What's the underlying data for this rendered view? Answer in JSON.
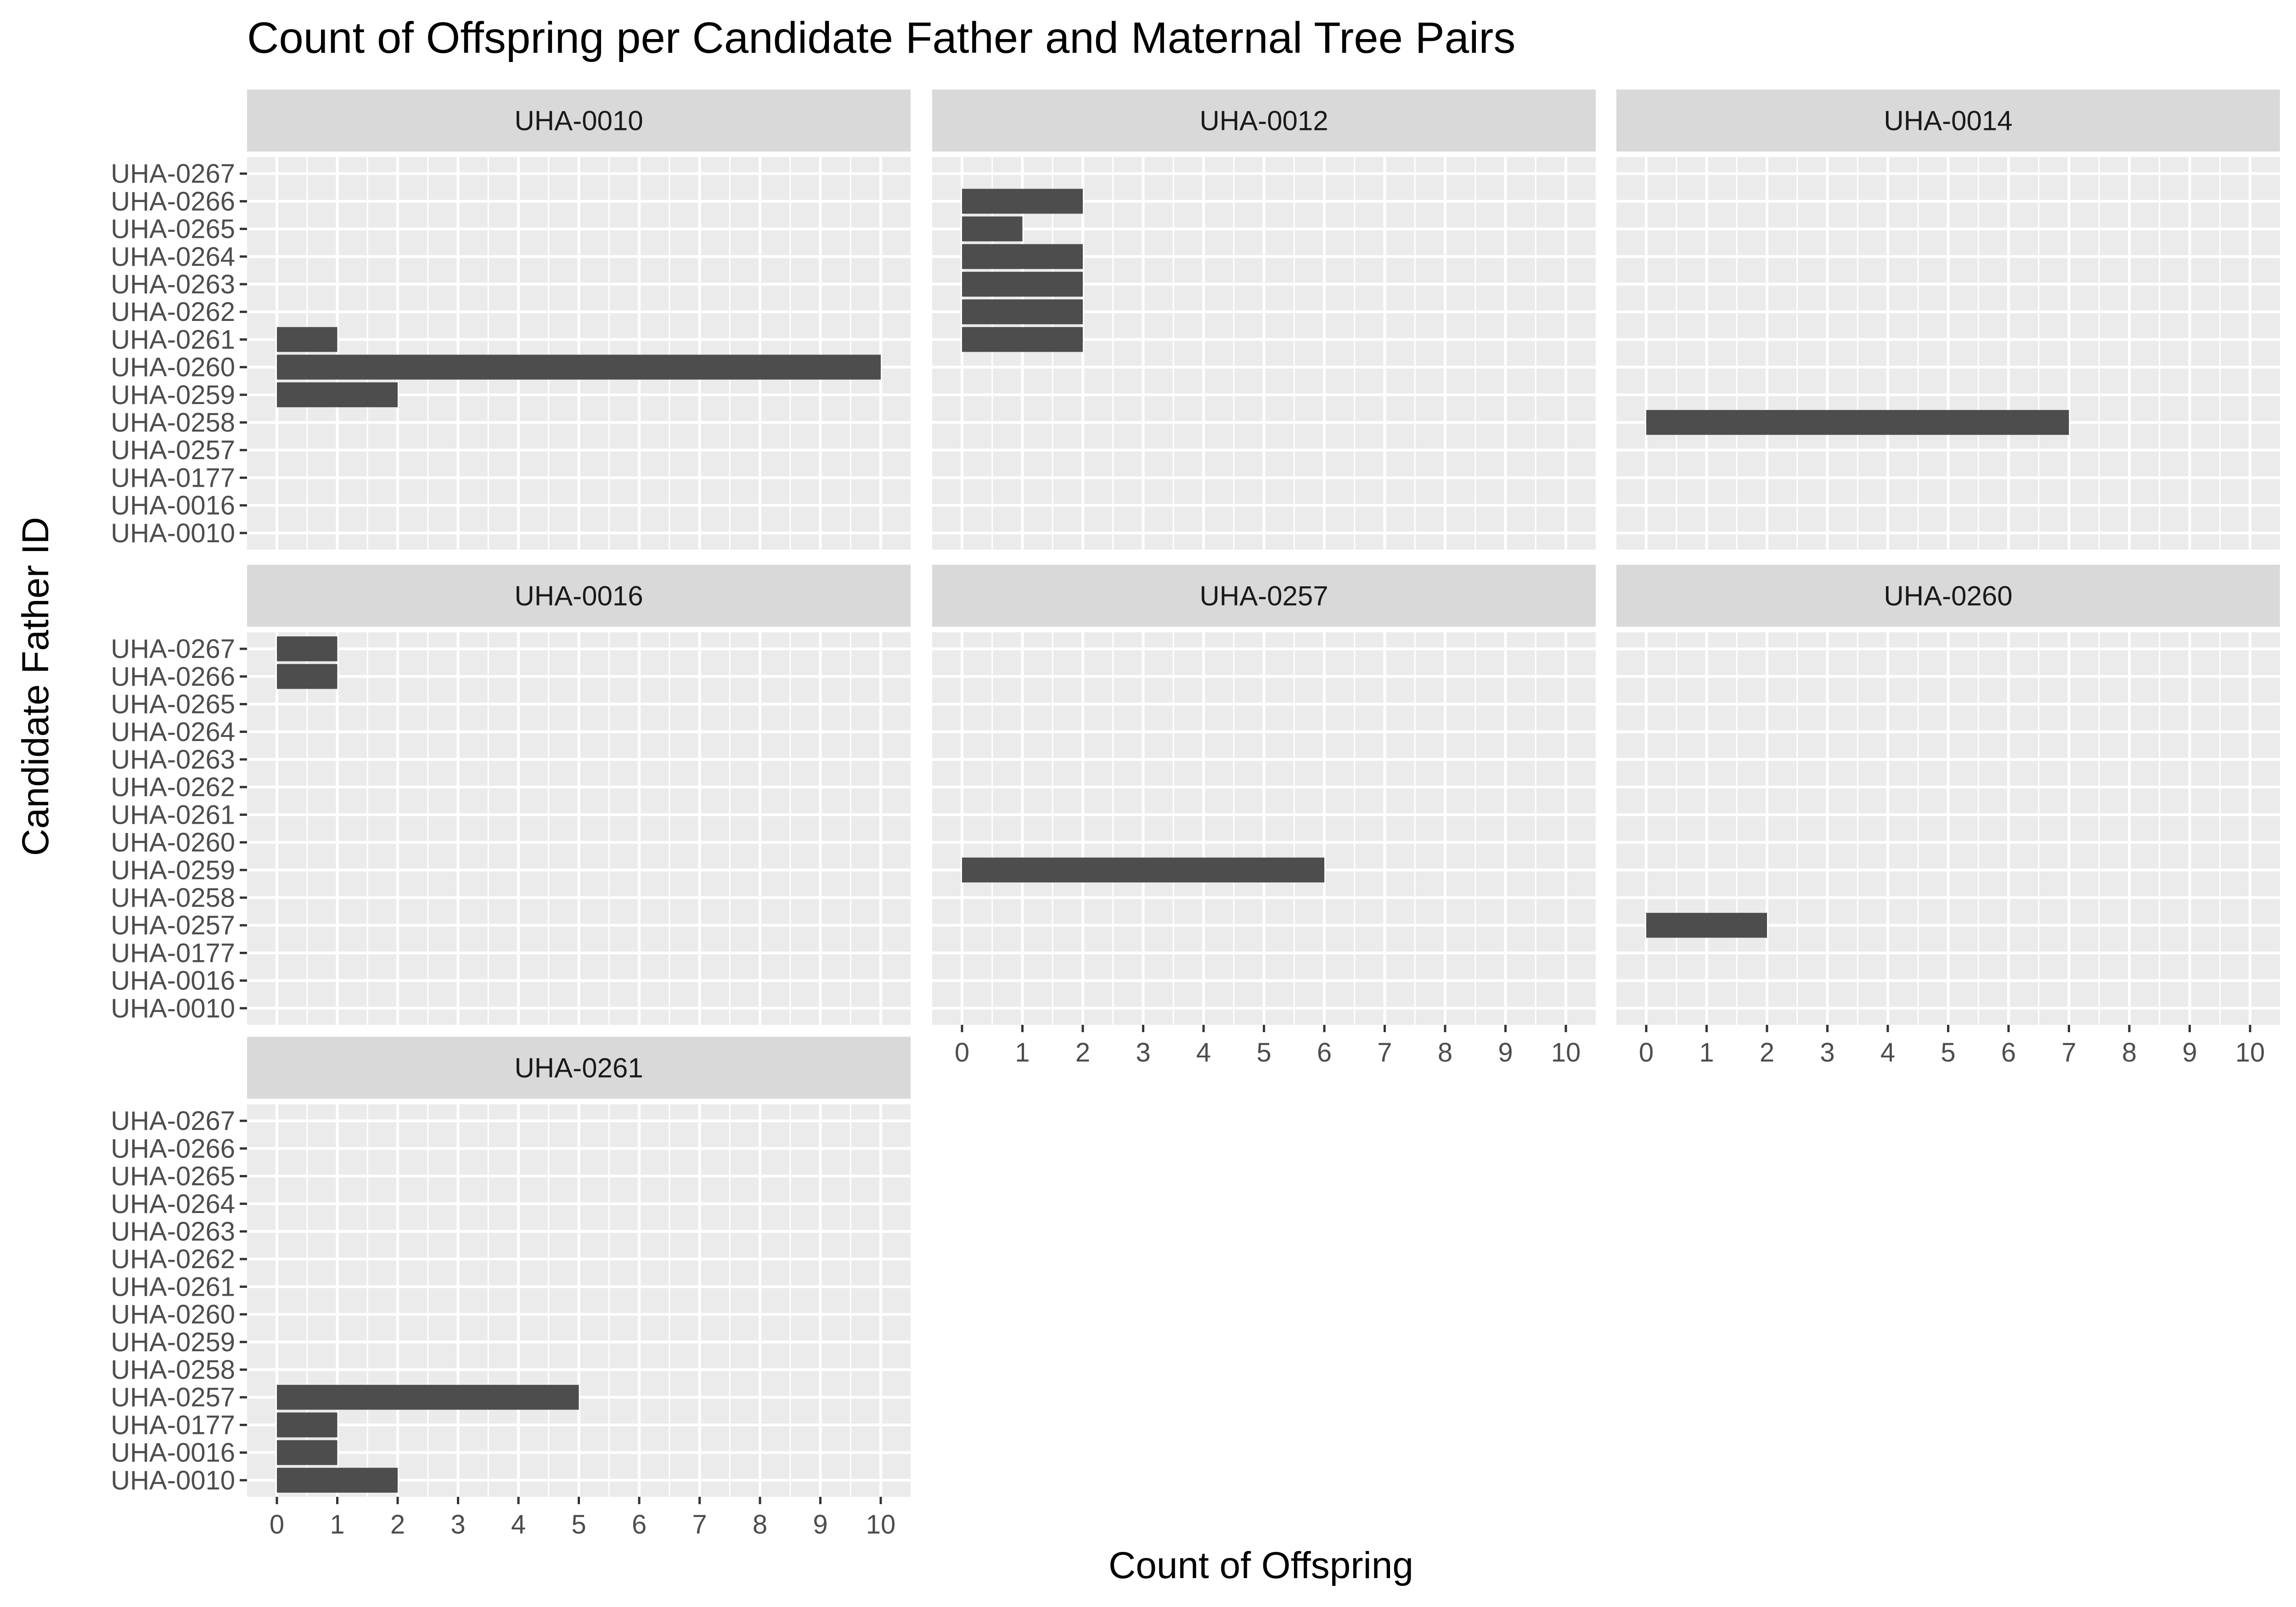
{
  "chart_data": {
    "type": "bar",
    "orientation": "horizontal",
    "title": "Count of Offspring per Candidate Father and Maternal Tree Pairs",
    "xlabel": "Count of Offspring",
    "ylabel": "Candidate Father ID",
    "xlim": [
      0,
      10
    ],
    "x_ticks": [
      "0",
      "1",
      "2",
      "3",
      "4",
      "5",
      "6",
      "7",
      "8",
      "9",
      "10"
    ],
    "categories": [
      "UHA-0010",
      "UHA-0016",
      "UHA-0177",
      "UHA-0257",
      "UHA-0258",
      "UHA-0259",
      "UHA-0260",
      "UHA-0261",
      "UHA-0262",
      "UHA-0263",
      "UHA-0264",
      "UHA-0265",
      "UHA-0266",
      "UHA-0267"
    ],
    "grid": true,
    "legend": "none",
    "colors": {
      "bar": "#4d4d4d",
      "panel_background": "#ebebeb",
      "strip_background": "#d9d9d9",
      "grid": "#ffffff"
    },
    "facets": [
      {
        "name": "UHA-0010",
        "bars": [
          {
            "category": "UHA-0259",
            "value": 2
          },
          {
            "category": "UHA-0260",
            "value": 10
          },
          {
            "category": "UHA-0261",
            "value": 1
          }
        ]
      },
      {
        "name": "UHA-0012",
        "bars": [
          {
            "category": "UHA-0261",
            "value": 2
          },
          {
            "category": "UHA-0262",
            "value": 2
          },
          {
            "category": "UHA-0263",
            "value": 2
          },
          {
            "category": "UHA-0264",
            "value": 2
          },
          {
            "category": "UHA-0265",
            "value": 1
          },
          {
            "category": "UHA-0266",
            "value": 2
          }
        ]
      },
      {
        "name": "UHA-0014",
        "bars": [
          {
            "category": "UHA-0258",
            "value": 7
          }
        ]
      },
      {
        "name": "UHA-0016",
        "bars": [
          {
            "category": "UHA-0266",
            "value": 1
          },
          {
            "category": "UHA-0267",
            "value": 1
          }
        ]
      },
      {
        "name": "UHA-0257",
        "bars": [
          {
            "category": "UHA-0259",
            "value": 6
          }
        ]
      },
      {
        "name": "UHA-0260",
        "bars": [
          {
            "category": "UHA-0257",
            "value": 2
          }
        ]
      },
      {
        "name": "UHA-0261",
        "bars": [
          {
            "category": "UHA-0010",
            "value": 2
          },
          {
            "category": "UHA-0016",
            "value": 1
          },
          {
            "category": "UHA-0177",
            "value": 1
          },
          {
            "category": "UHA-0257",
            "value": 5
          }
        ]
      }
    ]
  }
}
